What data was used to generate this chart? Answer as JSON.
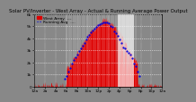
{
  "title": "Solar PV/Inverter - West Array - Actual & Running Average Power Output",
  "bg_color": "#888888",
  "plot_bg_color": "#888888",
  "bar_color": "#dd0000",
  "avg_color": "#0000dd",
  "grid_color": "#aaaaaa",
  "white_line_color": "#ffffff",
  "ylim": [
    0,
    6000
  ],
  "xlim": [
    0,
    288
  ],
  "ytick_labels": [
    "0",
    "1k",
    "2k",
    "3k",
    "4k",
    "5k",
    "6k"
  ],
  "xtick_labels": [
    "12a",
    "2a",
    "4a",
    "6a",
    "8a",
    "10a",
    "12p",
    "2p",
    "4p",
    "6p",
    "8p",
    "10p",
    "12a"
  ],
  "title_fontsize": 4.0,
  "tick_fontsize": 3.2,
  "legend_fontsize": 3.2
}
